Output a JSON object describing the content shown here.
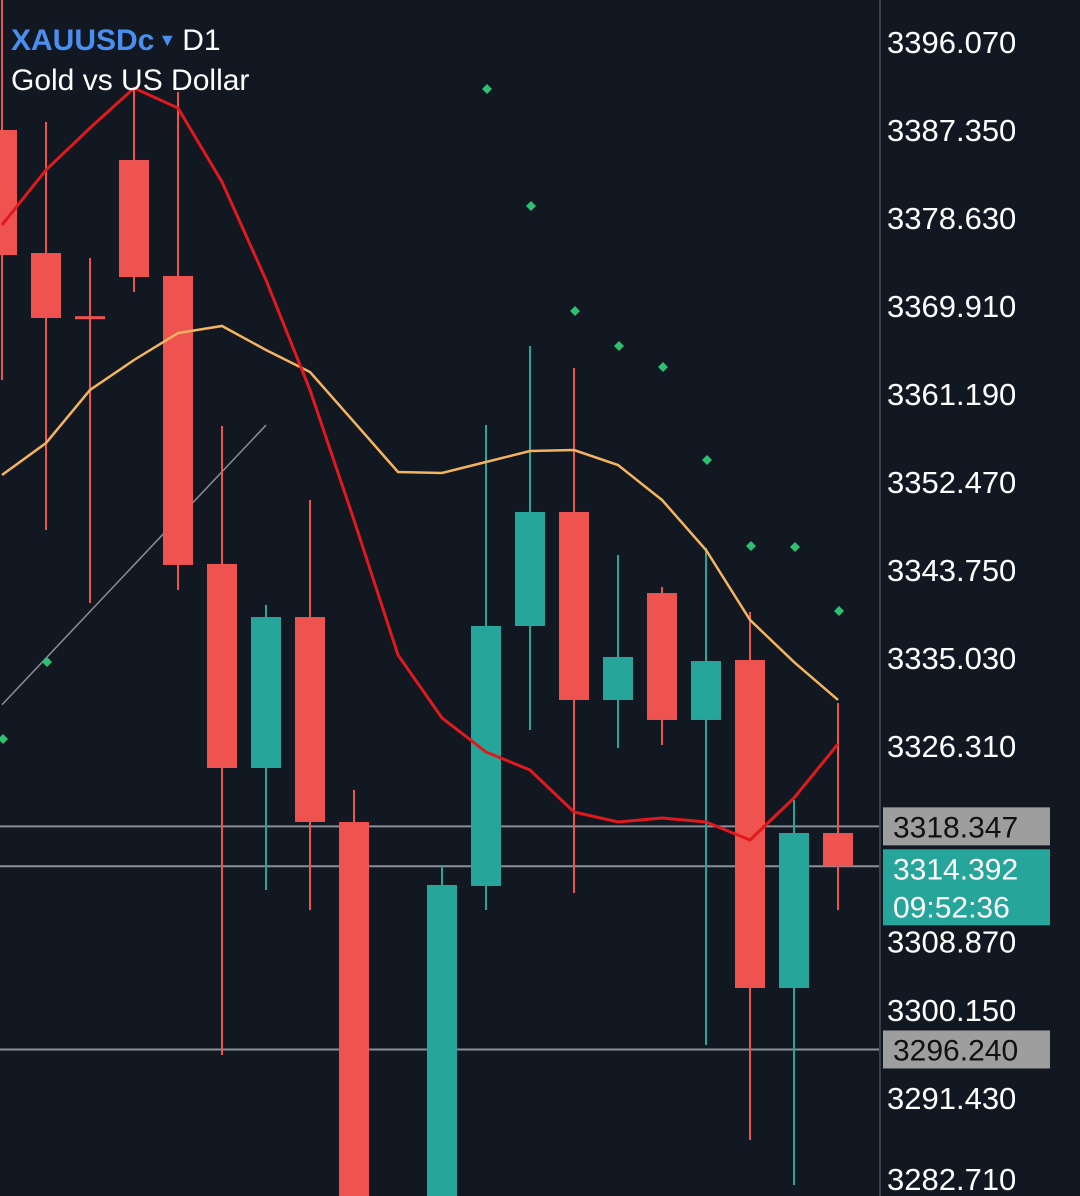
{
  "header": {
    "symbol": "XAUUSDc",
    "timeframe": "D1",
    "description": "Gold vs US Dollar",
    "dropdown_icon": "triangle-down-icon"
  },
  "colors": {
    "background": "#121822",
    "bull": "#26a69a",
    "bear": "#ef5350",
    "ma_fast": "#e0191d",
    "ma_slow": "#f4b35e",
    "dots": "#2fbf71",
    "symbol": "#4a8ff0",
    "grid_label": "#9e9e9e"
  },
  "chart_data": {
    "type": "candlestick",
    "title": "",
    "ylim": [
      3282.71,
      3396.07
    ],
    "y_ticks": [
      "3396.070",
      "3387.350",
      "3378.630",
      "3369.910",
      "3361.190",
      "3352.470",
      "3343.750",
      "3335.030",
      "3326.310",
      "3308.870",
      "3300.150",
      "3291.430",
      "3282.710"
    ],
    "candles": [
      {
        "o": 3387.35,
        "h": 3400.23,
        "l": 3362.58,
        "c": 3374.96
      },
      {
        "o": 3375.16,
        "h": 3388.14,
        "l": 3347.71,
        "c": 3368.72
      },
      {
        "o": 3368.9,
        "h": 3374.67,
        "l": 3340.48,
        "c": 3368.72
      },
      {
        "o": 3384.38,
        "h": 3391.51,
        "l": 3371.3,
        "c": 3372.78
      },
      {
        "o": 3372.88,
        "h": 3391.12,
        "l": 3341.77,
        "c": 3344.25
      },
      {
        "o": 3344.35,
        "h": 3358.02,
        "l": 3295.69,
        "c": 3324.13
      },
      {
        "o": 3324.13,
        "h": 3340.28,
        "l": 3312.04,
        "c": 3339.09
      },
      {
        "o": 3339.09,
        "h": 3350.69,
        "l": 3310.06,
        "c": 3318.78
      },
      {
        "o": 3318.78,
        "h": 3321.95,
        "l": 3270.0,
        "c": 3272.0
      },
      null,
      {
        "o": 3275.0,
        "h": 3314.52,
        "l": 3270.0,
        "c": 3312.54
      },
      {
        "o": 3312.44,
        "h": 3358.12,
        "l": 3310.06,
        "c": 3338.2
      },
      {
        "o": 3338.2,
        "h": 3365.95,
        "l": 3327.9,
        "c": 3349.5
      },
      {
        "o": 3349.5,
        "h": 3363.77,
        "l": 3311.74,
        "c": 3330.87
      },
      {
        "o": 3330.87,
        "h": 3345.24,
        "l": 3326.11,
        "c": 3335.13
      },
      {
        "o": 3341.47,
        "h": 3342.07,
        "l": 3326.41,
        "c": 3328.89
      },
      {
        "o": 3328.89,
        "h": 3345.93,
        "l": 3296.68,
        "c": 3334.73
      },
      {
        "o": 3334.83,
        "h": 3339.59,
        "l": 3287.27,
        "c": 3302.33
      },
      {
        "o": 3302.33,
        "h": 3320.96,
        "l": 3282.81,
        "c": 3317.69
      },
      {
        "o": 3317.69,
        "h": 3330.57,
        "l": 3310.06,
        "c": 3314.392
      }
    ],
    "ma_fast": [
      3377.94,
      3383.39,
      3387.55,
      3391.51,
      3389.53,
      3382.2,
      3372.49,
      3361.59,
      3348.7,
      3335.33,
      3329.09,
      3325.72,
      3323.93,
      3319.77,
      3318.78,
      3319.18,
      3318.78,
      3317.0,
      3321.16,
      3326.51
    ],
    "ma_slow": [
      3353.16,
      3356.33,
      3361.59,
      3364.56,
      3367.23,
      3367.93,
      3365.55,
      3363.37,
      3358.42,
      3353.46,
      3353.36,
      3354.45,
      3355.54,
      3355.64,
      3354.15,
      3350.69,
      3345.73,
      3338.8,
      3334.63,
      3330.87
    ],
    "dots": [
      3327.0,
      3334.63,
      null,
      null,
      null,
      null,
      null,
      null,
      null,
      null,
      null,
      3391.41,
      3379.82,
      3369.41,
      3365.95,
      3363.87,
      3354.65,
      3346.13,
      3346.03,
      3339.69
    ],
    "trendline": {
      "from": {
        "index": 0,
        "price": 3330.4
      },
      "to": {
        "index": 6,
        "price": 3358.1
      }
    },
    "hlines": [
      {
        "price": 3318.347,
        "label": "3318.347",
        "kind": "level"
      },
      {
        "price": 3314.392,
        "label": "3314.392",
        "kind": "current",
        "countdown": "09:52:36"
      },
      {
        "price": 3296.24,
        "label": "3296.240",
        "kind": "level"
      }
    ]
  }
}
